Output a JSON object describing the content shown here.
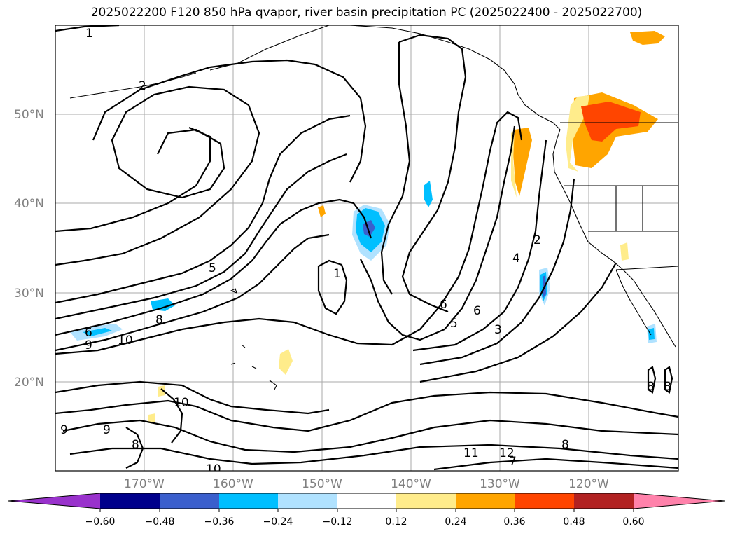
{
  "title": "2025022200 F120 850 hPa qvapor, river basin precipitation PC (2025022400 - 2025022700)",
  "lat_labels": [
    "50°N",
    "40°N",
    "30°N",
    "20°N"
  ],
  "lon_labels": [
    "170°W",
    "160°W",
    "150°W",
    "140°W",
    "130°W",
    "120°W"
  ],
  "colorbar": {
    "colors": [
      "#9932cc",
      "#00008b",
      "#3a5fcd",
      "#00bfff",
      "#b0e2ff",
      "#ffffff",
      "#ffec8b",
      "#ffa500",
      "#ff4500",
      "#b22222",
      "#ff82ab"
    ],
    "tick_labels": [
      "−0.60",
      "−0.48",
      "−0.36",
      "−0.24",
      "−0.12",
      "0.12",
      "0.24",
      "0.36",
      "0.48",
      "0.60"
    ]
  },
  "contour_labels": [
    "1",
    "2",
    "5",
    "1",
    "2",
    "4",
    "6",
    "5",
    "6",
    "3",
    "6",
    "9",
    "10",
    "8",
    "9",
    "9",
    "8",
    "10",
    "10",
    "11",
    "12",
    "7",
    "8",
    "8"
  ]
}
